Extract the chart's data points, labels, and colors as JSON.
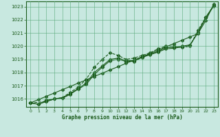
{
  "title": "Graphe pression niveau de la mer (hPa)",
  "background_color": "#c8e8e0",
  "grid_color": "#5aaa7a",
  "line_color": "#1a5a1a",
  "marker_color": "#1a5a1a",
  "xlim": [
    -0.5,
    23.5
  ],
  "ylim": [
    1015.4,
    1023.4
  ],
  "yticks": [
    1016,
    1017,
    1018,
    1019,
    1020,
    1021,
    1022,
    1023
  ],
  "xticks": [
    0,
    1,
    2,
    3,
    4,
    5,
    6,
    7,
    8,
    9,
    10,
    11,
    12,
    13,
    14,
    15,
    16,
    17,
    18,
    19,
    20,
    21,
    22,
    23
  ],
  "series": [
    {
      "x": [
        0,
        1,
        2,
        3,
        4,
        5,
        6,
        7,
        8,
        9,
        10,
        11,
        12,
        13,
        14,
        15,
        16,
        17,
        18,
        19,
        20,
        21,
        22,
        23
      ],
      "y": [
        1015.7,
        1015.95,
        1016.2,
        1016.45,
        1016.7,
        1016.95,
        1017.2,
        1017.45,
        1017.7,
        1017.95,
        1018.2,
        1018.45,
        1018.7,
        1018.95,
        1019.2,
        1019.45,
        1019.7,
        1019.95,
        1020.2,
        1020.45,
        1020.7,
        1020.95,
        1021.95,
        1023.2
      ],
      "style": "solid",
      "marker": "D"
    },
    {
      "x": [
        0,
        1,
        2,
        3,
        4,
        5,
        6,
        7,
        8,
        9,
        10,
        11,
        12,
        13,
        14,
        15,
        16,
        17,
        18,
        19,
        20,
        21,
        22,
        23
      ],
      "y": [
        1015.7,
        1015.6,
        1015.8,
        1016.0,
        1016.1,
        1016.4,
        1016.8,
        1017.2,
        1018.0,
        1018.5,
        1019.0,
        1019.1,
        1018.9,
        1018.9,
        1019.2,
        1019.4,
        1019.6,
        1019.9,
        1019.9,
        1020.0,
        1020.1,
        1021.0,
        1022.2,
        1023.1
      ],
      "style": "solid",
      "marker": "D"
    },
    {
      "x": [
        0,
        2,
        3,
        4,
        5,
        6,
        7,
        8,
        9,
        10,
        11,
        12,
        13,
        14,
        15,
        16,
        17,
        18,
        19,
        20,
        21,
        22,
        23
      ],
      "y": [
        1015.7,
        1015.8,
        1016.0,
        1016.1,
        1016.5,
        1016.9,
        1017.5,
        1018.4,
        1019.0,
        1019.5,
        1019.3,
        1019.0,
        1019.1,
        1019.3,
        1019.5,
        1019.8,
        1020.0,
        1020.0,
        1019.9,
        1020.0,
        1021.2,
        1022.2,
        1023.1
      ],
      "style": "dashed",
      "marker": "D"
    },
    {
      "x": [
        0,
        1,
        2,
        3,
        4,
        5,
        6,
        7,
        8,
        9,
        10,
        11,
        12,
        13,
        14,
        15,
        16,
        17,
        18,
        19,
        20,
        21,
        22,
        23
      ],
      "y": [
        1015.7,
        1015.6,
        1015.9,
        1016.0,
        1016.05,
        1016.35,
        1016.75,
        1017.1,
        1017.85,
        1018.4,
        1018.9,
        1019.0,
        1018.85,
        1018.85,
        1019.15,
        1019.35,
        1019.55,
        1019.8,
        1019.85,
        1019.95,
        1020.05,
        1021.05,
        1022.15,
        1023.05
      ],
      "style": "solid",
      "marker": "D"
    }
  ]
}
